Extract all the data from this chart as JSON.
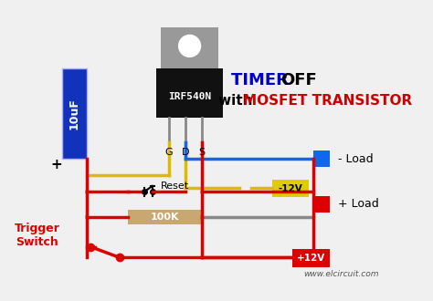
{
  "bg_color": "#f0f0f0",
  "title_line1_part1": "TIMER ",
  "title_line1_part2": "OFF",
  "title_line2_part1": "with ",
  "title_line2_part2": "MOSFET TRANSISTOR",
  "title_color1": "#0000cc",
  "title_color2": "#cc0000",
  "title_black": "#000000",
  "transistor_label": "IRF540N",
  "transistor_pins": [
    "G",
    "D",
    "S"
  ],
  "capacitor_label": "10uF",
  "resistor_label": "100K",
  "reset_label": "Reset",
  "voltage_label": "-12V",
  "voltage2_label": "+12V",
  "load_neg_label": "- Load",
  "load_pos_label": "+ Load",
  "trigger_label": "Trigger\nSwitch",
  "plus_label": "+",
  "website": "www.elcircuit.com",
  "wire_red": "#dd0000",
  "wire_blue": "#1166ee",
  "wire_yellow": "#ddbb00",
  "wire_gray": "#888888",
  "cap_color": "#1133bb",
  "transistor_body": "#111111",
  "transistor_tab": "#999999",
  "resistor_color": "#c8a870",
  "voltage_box": "#ddcc00",
  "load_blue_box": "#1166ee",
  "load_red_box": "#dd0000",
  "voltage2_box": "#dd0000"
}
